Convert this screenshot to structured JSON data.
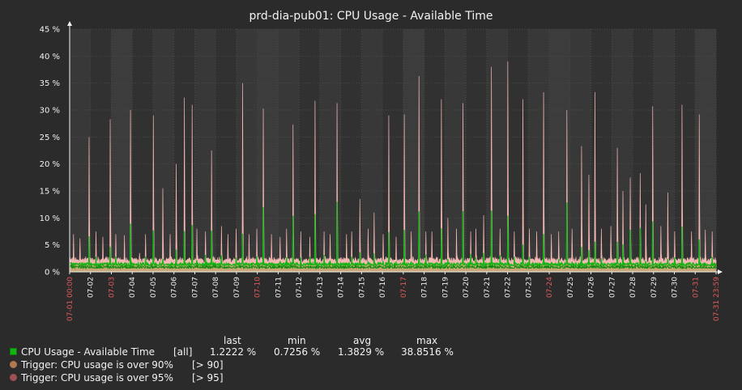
{
  "chart_data": {
    "type": "line",
    "title": "prd-dia-pub01: CPU Usage - Available Time",
    "y_ticks": [
      "0 %",
      "5 %",
      "10 %",
      "15 %",
      "20 %",
      "25 %",
      "30 %",
      "35 %",
      "40 %",
      "45 %"
    ],
    "ylim": [
      0,
      45
    ],
    "x_ticks": [
      {
        "label": "07-01 00:00",
        "red": true
      },
      {
        "label": "07-02",
        "red": false
      },
      {
        "label": "07-03",
        "red": true
      },
      {
        "label": "07-04",
        "red": false
      },
      {
        "label": "07-05",
        "red": false
      },
      {
        "label": "07-06",
        "red": false
      },
      {
        "label": "07-07",
        "red": false
      },
      {
        "label": "07-08",
        "red": false
      },
      {
        "label": "07-09",
        "red": false
      },
      {
        "label": "07-10",
        "red": true
      },
      {
        "label": "07-11",
        "red": false
      },
      {
        "label": "07-12",
        "red": false
      },
      {
        "label": "07-13",
        "red": false
      },
      {
        "label": "07-14",
        "red": false
      },
      {
        "label": "07-15",
        "red": false
      },
      {
        "label": "07-16",
        "red": false
      },
      {
        "label": "07-17",
        "red": true
      },
      {
        "label": "07-18",
        "red": false
      },
      {
        "label": "07-19",
        "red": false
      },
      {
        "label": "07-20",
        "red": false
      },
      {
        "label": "07-21",
        "red": false
      },
      {
        "label": "07-22",
        "red": false
      },
      {
        "label": "07-23",
        "red": false
      },
      {
        "label": "07-24",
        "red": true
      },
      {
        "label": "07-25",
        "red": false
      },
      {
        "label": "07-26",
        "red": false
      },
      {
        "label": "07-27",
        "red": false
      },
      {
        "label": "07-28",
        "red": false
      },
      {
        "label": "07-29",
        "red": false
      },
      {
        "label": "07-30",
        "red": false
      },
      {
        "label": "07-31",
        "red": true
      },
      {
        "label": "07-31 23:59",
        "red": true
      }
    ],
    "weekend_days": [
      2,
      9,
      16,
      23,
      30
    ],
    "grid": true,
    "series": [
      {
        "name": "CPU Usage - Available Time",
        "color": "#14b414",
        "max_color": "#f4b8b4",
        "avg_color": "#c8a878",
        "baseline_avg": 1.4,
        "daily_peaks": [
          [
            7.0,
            6.2,
            25.0,
            7.5,
            6.5,
            28.3
          ],
          [
            7.0,
            6.8,
            30.0,
            3.5,
            7.0,
            29.0
          ],
          [
            15.5,
            7.0,
            20.0,
            32.3,
            31.0,
            8.0
          ],
          [
            7.5,
            22.5,
            8.5,
            7.0,
            8.0
          ],
          [
            35.0,
            7.0,
            8.0,
            30.3
          ],
          [
            7.0,
            6.5,
            8.0,
            27.3,
            7.5
          ],
          [
            6.5,
            31.7,
            7.5,
            7.0
          ],
          [
            31.3,
            7.0,
            7.5
          ],
          [
            13.5,
            8.0,
            11.0,
            7.0
          ],
          [
            29.0,
            6.5,
            29.2
          ],
          [
            7.5,
            36.3,
            7.5
          ],
          [
            7.5,
            32.0,
            10.0,
            8.0
          ],
          [
            31.3,
            7.5,
            8.0
          ],
          [
            10.5,
            38.0,
            8.0,
            39.0
          ],
          [
            7.5,
            32.0,
            8.0,
            7.5
          ],
          [
            33.3,
            7.0,
            7.5
          ],
          [
            30.0,
            8.0,
            23.3,
            18.0
          ],
          [
            33.3,
            8.0,
            8.5,
            23.0
          ],
          [
            15.0,
            17.5,
            18.3,
            12.5
          ],
          [
            30.7,
            8.5,
            14.7,
            7.5,
            31.0
          ],
          [
            7.5,
            29.2,
            7.8,
            7.5
          ]
        ]
      }
    ],
    "legend": {
      "columns": [
        "last",
        "min",
        "avg",
        "max"
      ],
      "items": [
        {
          "name": "CPU Usage - Available Time",
          "func": "[all]",
          "last": "1.2222 %",
          "min": "0.7256 %",
          "avg": "1.3829 %",
          "max": "38.8516 %",
          "color": "#14b414"
        }
      ],
      "triggers": [
        {
          "name": "Trigger: CPU usage is over 90%",
          "threshold": "[> 90]",
          "color": "#b07850"
        },
        {
          "name": "Trigger: CPU usage is over 95%",
          "threshold": "[> 95]",
          "color": "#a05050"
        }
      ]
    }
  }
}
